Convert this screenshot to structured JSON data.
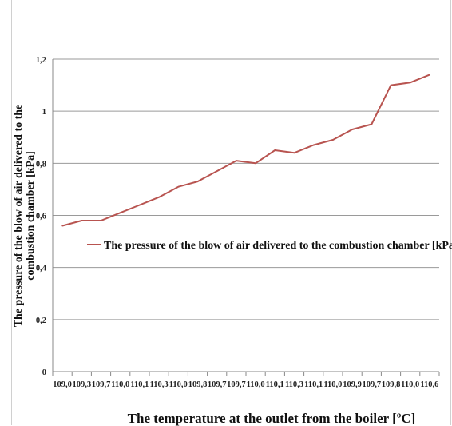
{
  "chart_data": {
    "type": "line",
    "title": "",
    "xlabel": "The temperature at the outlet from the boiler [ºC]",
    "ylabel": "The pressure of the blow of air delivered to the combustion chamber [kPa]",
    "ylim": [
      0,
      1.2
    ],
    "yticks": [
      "0",
      "0,2",
      "0,4",
      "0,6",
      "0,8",
      "1",
      "1,2"
    ],
    "grid": true,
    "legend_position": "center-right",
    "categories": [
      "109,0",
      "109,3",
      "109,7",
      "110,0",
      "110,1",
      "110,3",
      "110,0",
      "109,8",
      "109,7",
      "109,7",
      "110,0",
      "110,1",
      "110,3",
      "110,1",
      "110,0",
      "109,9",
      "109,7",
      "109,8",
      "110,0",
      "110,6"
    ],
    "series": [
      {
        "name": "The pressure of the blow of air delivered to the combustion chamber [kPa]",
        "color": "#b85450",
        "values": [
          0.56,
          0.58,
          0.58,
          0.61,
          0.64,
          0.67,
          0.71,
          0.73,
          0.77,
          0.81,
          0.8,
          0.85,
          0.84,
          0.87,
          0.89,
          0.93,
          0.95,
          1.1,
          1.11,
          1.14
        ]
      }
    ],
    "ylabel_lines": [
      "The pressure of the blow of air delivered to the",
      "combustion chamber [kPa]"
    ]
  }
}
